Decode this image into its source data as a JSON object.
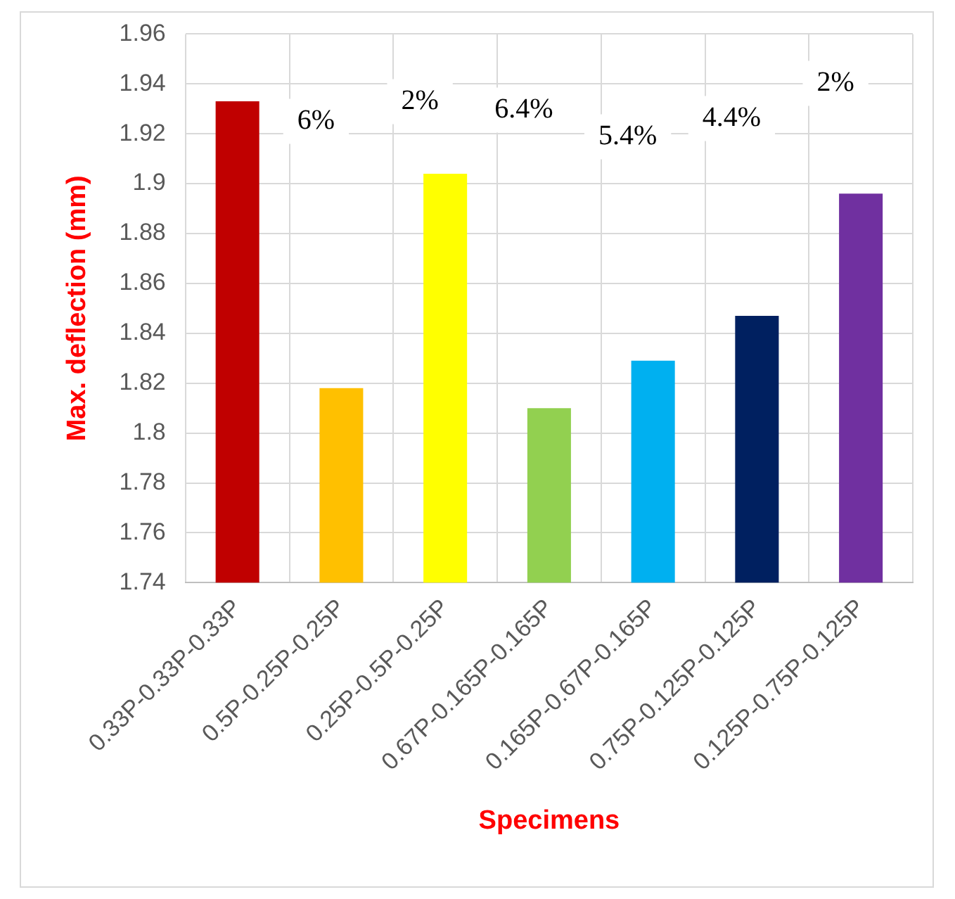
{
  "chart_data": {
    "type": "bar",
    "xlabel": "Specimens",
    "ylabel": "Max. deflection (mm)",
    "categories": [
      "0.33P-0.33P-0.33P",
      "0.5P-0.25P-0.25P",
      "0.25P-0.5P-0.25P",
      "0.67P-0.165P-0.165P",
      "0.165P-0.67P-0.165P",
      "0.75P-0.125P-0.125P",
      "0.125P-0.75P-0.125P"
    ],
    "values": [
      1.933,
      1.818,
      1.904,
      1.81,
      1.829,
      1.847,
      1.896
    ],
    "colors": [
      "#c00000",
      "#ffc000",
      "#ffff00",
      "#92d050",
      "#00b0f0",
      "#002060",
      "#7030a0"
    ],
    "ylim": [
      1.74,
      1.96
    ],
    "yticks": [
      1.74,
      1.76,
      1.78,
      1.8,
      1.82,
      1.84,
      1.86,
      1.88,
      1.9,
      1.92,
      1.94,
      1.96
    ],
    "grid": true,
    "annotations": [
      "6%",
      "2%",
      "6.4%",
      "5.4%",
      "4.4%",
      "2%"
    ]
  }
}
